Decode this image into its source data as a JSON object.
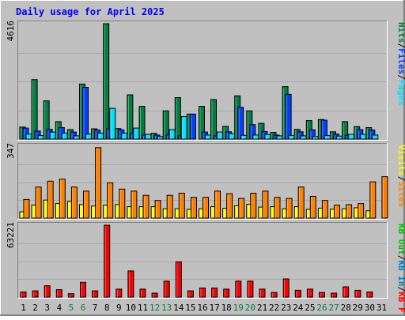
{
  "title": "Daily usage for April 2025",
  "colors": {
    "background": "#c0c0c0",
    "title": "#0000ff",
    "hits": "#008040",
    "files": "#0040ff",
    "pages": "#00e0ff",
    "visits": "#ffff00",
    "sites": "#ff8000",
    "kbin": "#0080c0",
    "kbout": "#00c000",
    "kbf": "#ff0000",
    "weekend_day_label": "#008040"
  },
  "chart_data": [
    {
      "type": "bar",
      "panel": "hits-files-pages",
      "ymax_label": "4616",
      "ylim": [
        0,
        4616
      ],
      "grid": true,
      "legend": {
        "placement": "right",
        "items": [
          "Pages",
          "/",
          "Files",
          "/",
          "Hits"
        ]
      },
      "x": [
        1,
        2,
        3,
        4,
        5,
        6,
        7,
        8,
        9,
        10,
        11,
        12,
        13,
        14,
        15,
        16,
        17,
        18,
        19,
        20,
        21,
        22,
        23,
        24,
        25,
        26,
        27,
        28,
        29,
        30,
        31
      ],
      "series": [
        {
          "name": "Hits",
          "values": [
            480,
            2380,
            1530,
            700,
            380,
            2200,
            410,
            4616,
            420,
            1770,
            1310,
            230,
            1130,
            1660,
            1000,
            1310,
            1580,
            510,
            1730,
            1130,
            630,
            270,
            2100,
            390,
            740,
            780,
            290,
            700,
            500,
            460,
            0
          ]
        },
        {
          "name": "Files",
          "values": [
            440,
            320,
            390,
            460,
            280,
            2070,
            360,
            410,
            370,
            220,
            170,
            160,
            170,
            130,
            1000,
            280,
            130,
            290,
            1270,
            580,
            300,
            160,
            1790,
            290,
            370,
            760,
            200,
            150,
            380,
            360,
            0
          ]
        },
        {
          "name": "Pages",
          "values": [
            200,
            140,
            280,
            240,
            130,
            200,
            240,
            1230,
            240,
            440,
            190,
            100,
            380,
            900,
            0,
            160,
            280,
            220,
            150,
            160,
            180,
            130,
            150,
            130,
            100,
            140,
            120,
            190,
            190,
            160,
            0
          ]
        }
      ]
    },
    {
      "type": "bar",
      "panel": "visits-sites",
      "ymax_label": "347",
      "ylim": [
        0,
        347
      ],
      "grid": true,
      "legend": {
        "placement": "right",
        "items": [
          "Sites",
          "/",
          "Visits"
        ]
      },
      "x": [
        1,
        2,
        3,
        4,
        5,
        6,
        7,
        8,
        9,
        10,
        11,
        12,
        13,
        14,
        15,
        16,
        17,
        18,
        19,
        20,
        21,
        22,
        23,
        24,
        25,
        26,
        27,
        28,
        29,
        30,
        31
      ],
      "series": [
        {
          "name": "Visits",
          "values": [
            30,
            63,
            87,
            70,
            80,
            65,
            58,
            62,
            65,
            55,
            55,
            55,
            45,
            45,
            42,
            45,
            55,
            47,
            60,
            66,
            53,
            55,
            45,
            55,
            42,
            48,
            43,
            45,
            50,
            35,
            0
          ]
        },
        {
          "name": "Sites",
          "values": [
            90,
            150,
            178,
            188,
            150,
            130,
            340,
            170,
            140,
            130,
            110,
            85,
            110,
            120,
            100,
            100,
            130,
            118,
            95,
            120,
            130,
            100,
            95,
            150,
            105,
            85,
            62,
            65,
            70,
            175,
            200
          ]
        }
      ]
    },
    {
      "type": "bar",
      "panel": "kbf-kbin-kbout",
      "ymax_label": "63221",
      "ylim": [
        0,
        63221
      ],
      "grid": true,
      "legend": {
        "placement": "right",
        "items": [
          "KB F",
          "/",
          "KB In",
          "/",
          "KB Out"
        ]
      },
      "x": [
        1,
        2,
        3,
        4,
        5,
        6,
        7,
        8,
        9,
        10,
        11,
        12,
        13,
        14,
        15,
        16,
        17,
        18,
        19,
        20,
        21,
        22,
        23,
        24,
        25,
        26,
        27,
        28,
        29,
        30,
        31
      ],
      "series": [
        {
          "name": "KB F",
          "values": [
            4500,
            5500,
            10000,
            6500,
            3000,
            13000,
            5500,
            63221,
            7000,
            23000,
            7000,
            3500,
            14000,
            31000,
            5500,
            8000,
            8000,
            7000,
            14000,
            14000,
            7000,
            4000,
            16000,
            6000,
            7000,
            4000,
            3500,
            9000,
            6000,
            4500,
            0
          ]
        }
      ]
    }
  ],
  "x_axis": {
    "labels": [
      "1",
      "2",
      "3",
      "4",
      "5",
      "6",
      "7",
      "8",
      "9",
      "10",
      "11",
      "12",
      "13",
      "14",
      "15",
      "16",
      "17",
      "18",
      "19",
      "20",
      "21",
      "22",
      "23",
      "24",
      "25",
      "26",
      "27",
      "28",
      "29",
      "30",
      "31"
    ],
    "weekend_days": [
      5,
      6,
      12,
      13,
      19,
      20,
      26,
      27
    ]
  }
}
